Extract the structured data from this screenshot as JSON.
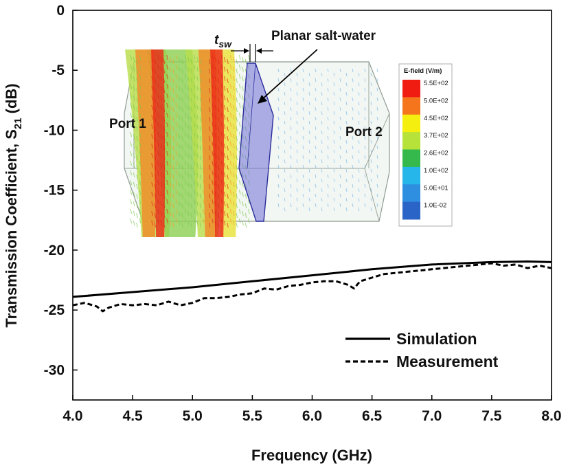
{
  "chart_data": {
    "type": "line",
    "xlabel": "Frequency (GHz)",
    "ylabel_main": "Transmission Coefficient, S",
    "ylabel_sub": "21",
    "ylabel_unit": " (dB)",
    "xlim": [
      4.0,
      8.0
    ],
    "ylim": [
      -32.5,
      0
    ],
    "x_ticks": [
      "4.0",
      "4.5",
      "5.0",
      "5.5",
      "6.0",
      "6.5",
      "7.0",
      "7.5",
      "8.0"
    ],
    "y_ticks": [
      "0",
      "-5",
      "-10",
      "-15",
      "-20",
      "-25",
      "-30"
    ],
    "series": [
      {
        "name": "Simulation",
        "style": "solid",
        "color": "#000000",
        "x": [
          4.0,
          4.5,
          5.0,
          5.5,
          6.0,
          6.5,
          7.0,
          7.5,
          7.8,
          8.0
        ],
        "y": [
          -23.9,
          -23.5,
          -23.1,
          -22.6,
          -22.1,
          -21.6,
          -21.2,
          -21.0,
          -20.95,
          -21.0
        ]
      },
      {
        "name": "Measurement",
        "style": "dashed",
        "color": "#000000",
        "x": [
          4.0,
          4.1,
          4.2,
          4.25,
          4.3,
          4.4,
          4.5,
          4.6,
          4.7,
          4.8,
          4.9,
          5.0,
          5.1,
          5.2,
          5.3,
          5.4,
          5.5,
          5.6,
          5.7,
          5.8,
          5.9,
          6.0,
          6.1,
          6.2,
          6.3,
          6.35,
          6.4,
          6.5,
          6.6,
          6.7,
          6.8,
          6.9,
          7.0,
          7.1,
          7.2,
          7.3,
          7.4,
          7.5,
          7.6,
          7.7,
          7.8,
          7.9,
          8.0
        ],
        "y": [
          -24.6,
          -24.4,
          -24.7,
          -25.1,
          -24.8,
          -24.5,
          -24.6,
          -24.5,
          -24.6,
          -24.3,
          -24.6,
          -24.4,
          -24.0,
          -24.0,
          -23.9,
          -23.7,
          -23.6,
          -23.2,
          -23.3,
          -23.0,
          -22.9,
          -22.7,
          -22.6,
          -22.6,
          -22.9,
          -23.2,
          -22.6,
          -22.3,
          -22.0,
          -21.9,
          -21.8,
          -21.7,
          -21.6,
          -21.5,
          -21.4,
          -21.3,
          -21.2,
          -21.1,
          -21.3,
          -21.2,
          -21.5,
          -21.3,
          -21.5
        ]
      }
    ],
    "legend": {
      "position": "bottom-right",
      "entries": [
        "Simulation",
        "Measurement"
      ]
    },
    "inset": {
      "description_labels": {
        "port1": "Port 1",
        "port2": "Port 2",
        "thickness_symbol": "t",
        "thickness_sub": "sw",
        "slab_label": "Planar salt-water"
      },
      "colorbar": {
        "title": "E-field (V/m)",
        "levels": [
          "5.5E+02",
          "5.0E+02",
          "4.5E+02",
          "3.7E+02",
          "2.6E+02",
          "1.0E+02",
          "5.0E+01",
          "1.0E-02"
        ],
        "colors": [
          "#f01c12",
          "#f5751c",
          "#f4ef0e",
          "#b7e23a",
          "#35b94c",
          "#27b6ea",
          "#2e8fe0",
          "#2a64c6"
        ]
      }
    }
  }
}
